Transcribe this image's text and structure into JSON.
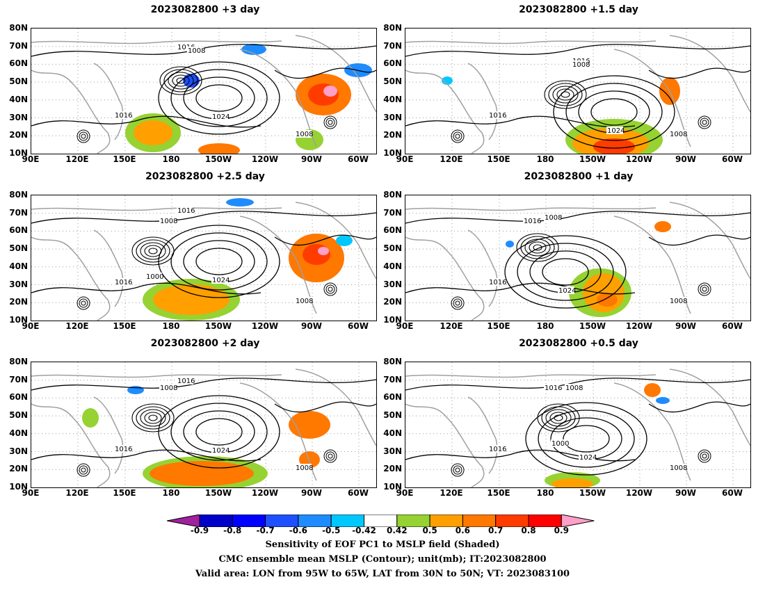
{
  "panels": [
    {
      "title": "2023082800  +3  day"
    },
    {
      "title": "2023082800  +1.5  day"
    },
    {
      "title": "2023082800  +2.5  day"
    },
    {
      "title": "2023082800  +1  day"
    },
    {
      "title": "2023082800  +2  day"
    },
    {
      "title": "2023082800  +0.5  day"
    }
  ],
  "lat_labels": [
    "80N",
    "70N",
    "60N",
    "50N",
    "40N",
    "30N",
    "20N",
    "10N"
  ],
  "lon_labels": [
    "90E",
    "120E",
    "150E",
    "180",
    "150W",
    "120W",
    "90W",
    "60W"
  ],
  "contour_labels": [
    "1008",
    "1016",
    "1024",
    "1000"
  ],
  "colorbar": {
    "ticks": [
      "-0.9",
      "-0.8",
      "-0.7",
      "-0.6",
      "-0.5",
      "-0.42",
      "0.42",
      "0.5",
      "0.6",
      "0.7",
      "0.8",
      "0.9"
    ],
    "colors": [
      "#a020a0",
      "#0000c8",
      "#0000ff",
      "#1e50ff",
      "#1e8cff",
      "#00c8ff",
      "#ffffff",
      "#96d232",
      "#ffa000",
      "#ff7800",
      "#ff3c00",
      "#ff0000",
      "#ffa0c8"
    ]
  },
  "caption": {
    "line1": "Sensitivity of EOF PC1 to MSLP field (Shaded)",
    "line2": "CMC ensemble mean MSLP (Contour); unit(mb); IT:2023082800",
    "line3": "Valid area: LON from 95W to 65W, LAT from 30N to 50N; VT: 2023083100"
  }
}
